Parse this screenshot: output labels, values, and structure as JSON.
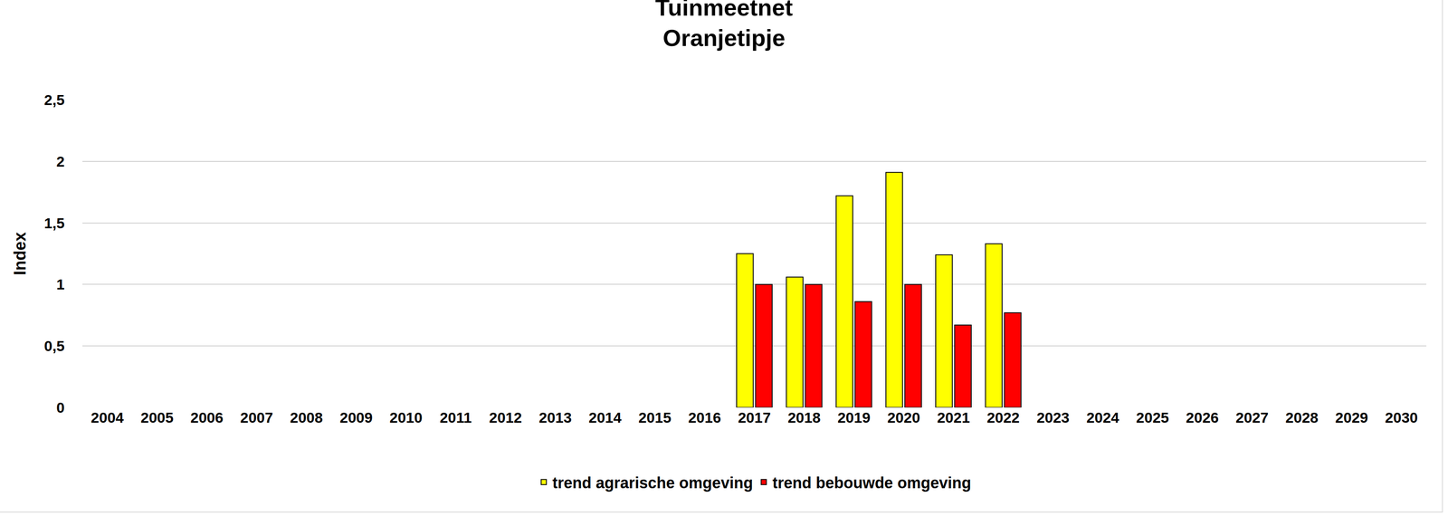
{
  "chart_data": {
    "type": "bar",
    "title": "Tuinmeetnet",
    "subtitle": "Oranjetipje",
    "y_label": "Index",
    "categories": [
      "2004",
      "2005",
      "2006",
      "2007",
      "2008",
      "2009",
      "2010",
      "2011",
      "2012",
      "2013",
      "2014",
      "2015",
      "2016",
      "2017",
      "2018",
      "2019",
      "2020",
      "2021",
      "2022",
      "2023",
      "2024",
      "2025",
      "2026",
      "2027",
      "2028",
      "2029",
      "2030"
    ],
    "series": [
      {
        "name": "trend agrarische omgeving",
        "color": "#ffff00",
        "values": [
          null,
          null,
          null,
          null,
          null,
          null,
          null,
          null,
          null,
          null,
          null,
          null,
          null,
          1.25,
          1.06,
          1.72,
          1.91,
          1.24,
          1.33,
          null,
          null,
          null,
          null,
          null,
          null,
          null,
          null
        ]
      },
      {
        "name": "trend bebouwde omgeving",
        "color": "#ff0000",
        "values": [
          null,
          null,
          null,
          null,
          null,
          null,
          null,
          null,
          null,
          null,
          null,
          null,
          null,
          1.0,
          1.0,
          0.86,
          1.0,
          0.67,
          0.77,
          null,
          null,
          null,
          null,
          null,
          null,
          null,
          null
        ]
      }
    ],
    "ylim": [
      0,
      2.5
    ],
    "yticks": [
      0,
      {
        "value": 0.5,
        "label": "0,5"
      },
      1,
      {
        "value": 1.5,
        "label": "1,5"
      },
      2,
      {
        "value": 2.5,
        "label": "2,5"
      }
    ],
    "grid": true,
    "legend": "bottom"
  }
}
